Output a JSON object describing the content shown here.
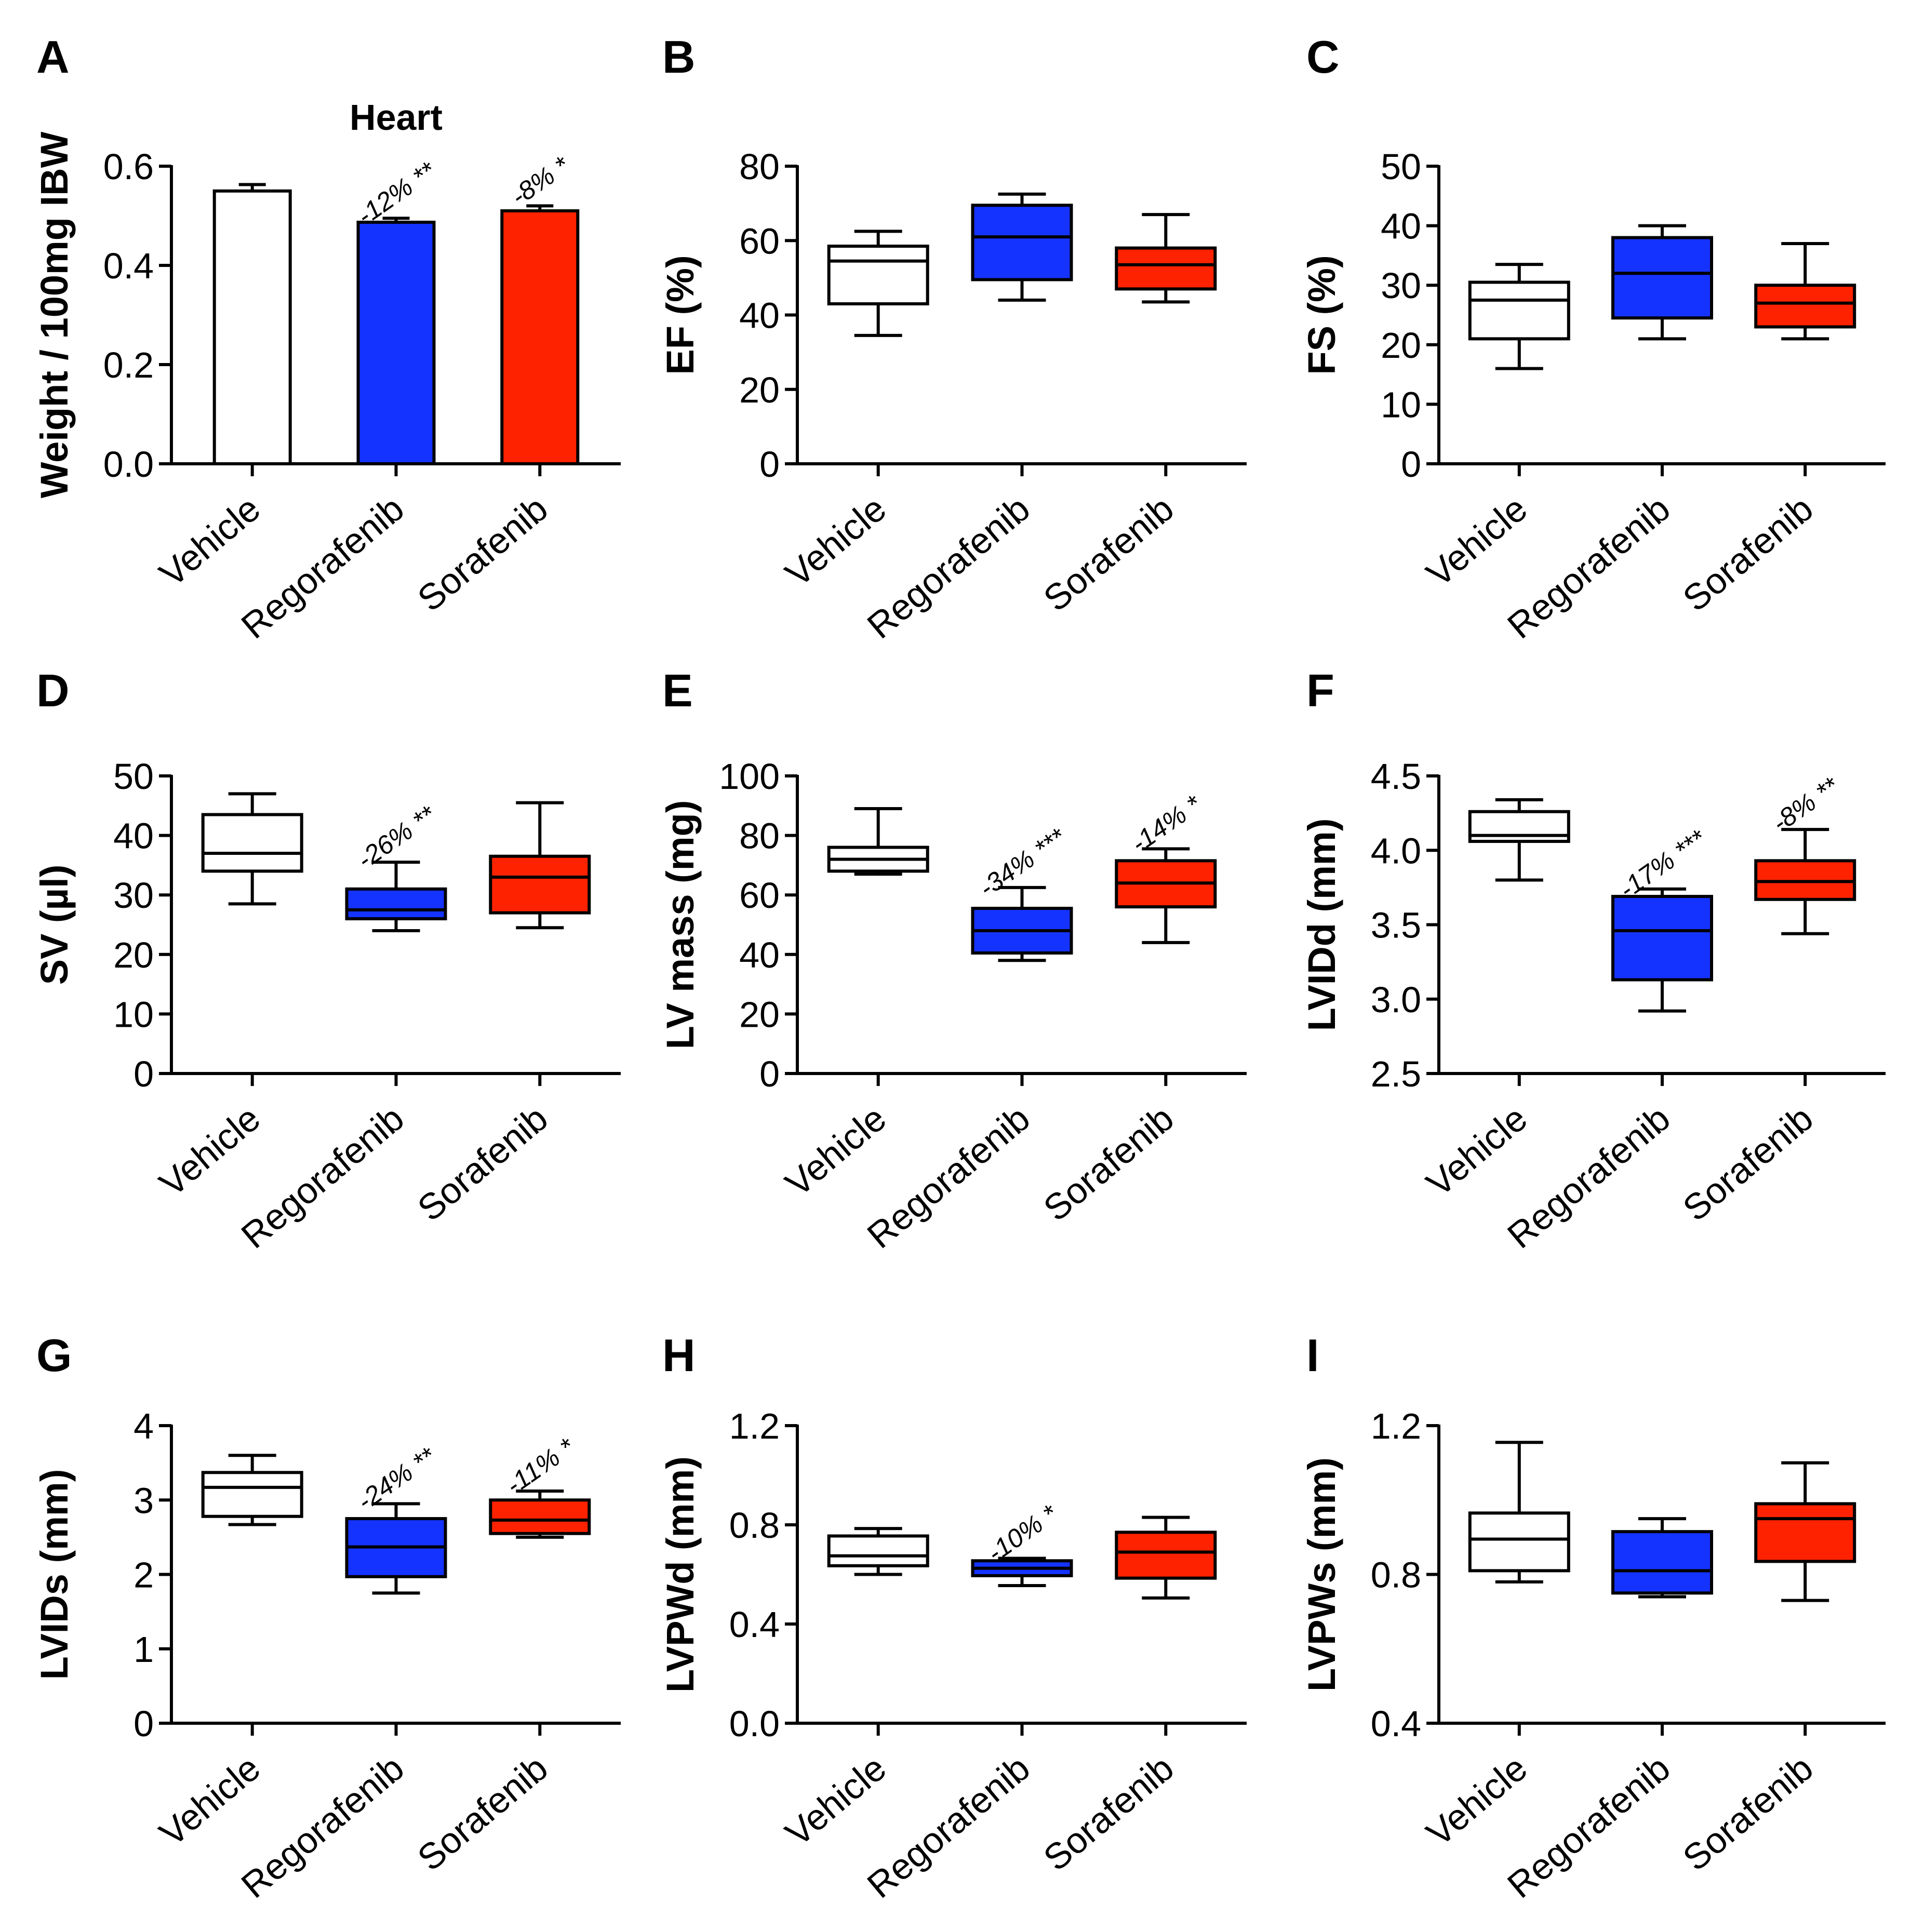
{
  "chart_data": [
    {
      "panel": "A",
      "type": "bar",
      "title": "Heart",
      "ylabel": "Weight / 100mg IBW",
      "ylim": [
        0,
        0.6
      ],
      "yticks": [
        "0.0",
        "0.2",
        "0.4",
        "0.6"
      ],
      "categories": [
        "Vehicle",
        "Regorafenib",
        "Sorafenib"
      ],
      "colors": [
        "#ffffff",
        "#1533ff",
        "#ff2200"
      ],
      "values": [
        0.55,
        0.487,
        0.51
      ],
      "errors": [
        0.013,
        0.008,
        0.01
      ],
      "annotations": [
        "",
        "-12% **",
        "-8% *"
      ]
    },
    {
      "panel": "B",
      "type": "box",
      "ylabel": "EF (%)",
      "ylim": [
        0,
        80
      ],
      "yticks": [
        "0",
        "20",
        "40",
        "60",
        "80"
      ],
      "categories": [
        "Vehicle",
        "Regorafenib",
        "Sorafenib"
      ],
      "colors": [
        "#ffffff",
        "#1533ff",
        "#ff2200"
      ],
      "boxes": [
        {
          "min": 34.5,
          "q1": 43,
          "median": 54.5,
          "q3": 58.5,
          "max": 62.5
        },
        {
          "min": 44,
          "q1": 49.5,
          "median": 61,
          "q3": 69.5,
          "max": 72.5
        },
        {
          "min": 43.5,
          "q1": 47,
          "median": 53.5,
          "q3": 58,
          "max": 67
        }
      ],
      "annotations": [
        "",
        "",
        ""
      ]
    },
    {
      "panel": "C",
      "type": "box",
      "ylabel": "FS (%)",
      "ylim": [
        0,
        50
      ],
      "yticks": [
        "0",
        "10",
        "20",
        "30",
        "40",
        "50"
      ],
      "categories": [
        "Vehicle",
        "Regorafenib",
        "Sorafenib"
      ],
      "colors": [
        "#ffffff",
        "#1533ff",
        "#ff2200"
      ],
      "boxes": [
        {
          "min": 16,
          "q1": 21,
          "median": 27.5,
          "q3": 30.5,
          "max": 33.5
        },
        {
          "min": 21,
          "q1": 24.5,
          "median": 32,
          "q3": 38,
          "max": 40
        },
        {
          "min": 21,
          "q1": 23,
          "median": 27,
          "q3": 30,
          "max": 37
        }
      ],
      "annotations": [
        "",
        "",
        ""
      ]
    },
    {
      "panel": "D",
      "type": "box",
      "ylabel": "SV (µl)",
      "ylim": [
        0,
        50
      ],
      "yticks": [
        "0",
        "10",
        "20",
        "30",
        "40",
        "50"
      ],
      "categories": [
        "Vehicle",
        "Regorafenib",
        "Sorafenib"
      ],
      "colors": [
        "#ffffff",
        "#1533ff",
        "#ff2200"
      ],
      "boxes": [
        {
          "min": 28.5,
          "q1": 34,
          "median": 37,
          "q3": 43.5,
          "max": 47
        },
        {
          "min": 24,
          "q1": 26,
          "median": 27.5,
          "q3": 31,
          "max": 35.5
        },
        {
          "min": 24.5,
          "q1": 27,
          "median": 33,
          "q3": 36.5,
          "max": 45.5
        }
      ],
      "annotations": [
        "",
        "-26% **",
        ""
      ]
    },
    {
      "panel": "E",
      "type": "box",
      "ylabel": "LV mass (mg)",
      "ylim": [
        0,
        100
      ],
      "yticks": [
        "0",
        "20",
        "40",
        "60",
        "80",
        "100"
      ],
      "categories": [
        "Vehicle",
        "Regorafenib",
        "Sorafenib"
      ],
      "colors": [
        "#ffffff",
        "#1533ff",
        "#ff2200"
      ],
      "boxes": [
        {
          "min": 67,
          "q1": 68,
          "median": 72,
          "q3": 76,
          "max": 89
        },
        {
          "min": 38,
          "q1": 40.5,
          "median": 48,
          "q3": 55.5,
          "max": 62.5
        },
        {
          "min": 44,
          "q1": 56,
          "median": 64,
          "q3": 71.5,
          "max": 75.5
        }
      ],
      "annotations": [
        "",
        "-34% ***",
        "-14% *"
      ]
    },
    {
      "panel": "F",
      "type": "box",
      "ylabel": "LVIDd (mm)",
      "ylim": [
        2.5,
        4.5
      ],
      "yticks": [
        "2.5",
        "3.0",
        "3.5",
        "4.0",
        "4.5"
      ],
      "categories": [
        "Vehicle",
        "Regorafenib",
        "Sorafenib"
      ],
      "colors": [
        "#ffffff",
        "#1533ff",
        "#ff2200"
      ],
      "boxes": [
        {
          "min": 3.8,
          "q1": 4.06,
          "median": 4.1,
          "q3": 4.26,
          "max": 4.34
        },
        {
          "min": 2.92,
          "q1": 3.13,
          "median": 3.46,
          "q3": 3.69,
          "max": 3.74
        },
        {
          "min": 3.44,
          "q1": 3.67,
          "median": 3.79,
          "q3": 3.93,
          "max": 4.14
        }
      ],
      "annotations": [
        "",
        "-17% ***",
        "-8% **"
      ]
    },
    {
      "panel": "G",
      "type": "box",
      "ylabel": "LVIDs (mm)",
      "ylim": [
        0,
        4
      ],
      "yticks": [
        "0",
        "1",
        "2",
        "3",
        "4"
      ],
      "categories": [
        "Vehicle",
        "Regorafenib",
        "Sorafenib"
      ],
      "colors": [
        "#ffffff",
        "#1533ff",
        "#ff2200"
      ],
      "boxes": [
        {
          "min": 2.67,
          "q1": 2.78,
          "median": 3.17,
          "q3": 3.37,
          "max": 3.6
        },
        {
          "min": 1.75,
          "q1": 1.97,
          "median": 2.37,
          "q3": 2.75,
          "max": 2.95
        },
        {
          "min": 2.5,
          "q1": 2.55,
          "median": 2.73,
          "q3": 3.0,
          "max": 3.12
        }
      ],
      "annotations": [
        "",
        "-24% **",
        "-11% *"
      ]
    },
    {
      "panel": "H",
      "type": "box",
      "ylabel": "LVPWd (mm)",
      "ylim": [
        0.0,
        1.2
      ],
      "yticks": [
        "0.0",
        "0.4",
        "0.8",
        "1.2"
      ],
      "categories": [
        "Vehicle",
        "Regorafenib",
        "Sorafenib"
      ],
      "colors": [
        "#ffffff",
        "#1533ff",
        "#ff2200"
      ],
      "boxes": [
        {
          "min": 0.6,
          "q1": 0.635,
          "median": 0.675,
          "q3": 0.755,
          "max": 0.785
        },
        {
          "min": 0.555,
          "q1": 0.595,
          "median": 0.625,
          "q3": 0.655,
          "max": 0.665
        },
        {
          "min": 0.505,
          "q1": 0.585,
          "median": 0.69,
          "q3": 0.77,
          "max": 0.83
        }
      ],
      "annotations": [
        "",
        "-10% *",
        ""
      ]
    },
    {
      "panel": "I",
      "type": "box",
      "ylabel": "LVPWs (mm)",
      "ylim": [
        0.4,
        1.2
      ],
      "yticks": [
        "0.4",
        "0.8",
        "1.2"
      ],
      "categories": [
        "Vehicle",
        "Regorafenib",
        "Sorafenib"
      ],
      "colors": [
        "#ffffff",
        "#1533ff",
        "#ff2200"
      ],
      "boxes": [
        {
          "min": 0.78,
          "q1": 0.81,
          "median": 0.895,
          "q3": 0.965,
          "max": 1.155
        },
        {
          "min": 0.74,
          "q1": 0.75,
          "median": 0.81,
          "q3": 0.915,
          "max": 0.95
        },
        {
          "min": 0.73,
          "q1": 0.835,
          "median": 0.95,
          "q3": 0.99,
          "max": 1.1
        }
      ],
      "annotations": [
        "",
        "",
        ""
      ]
    }
  ]
}
